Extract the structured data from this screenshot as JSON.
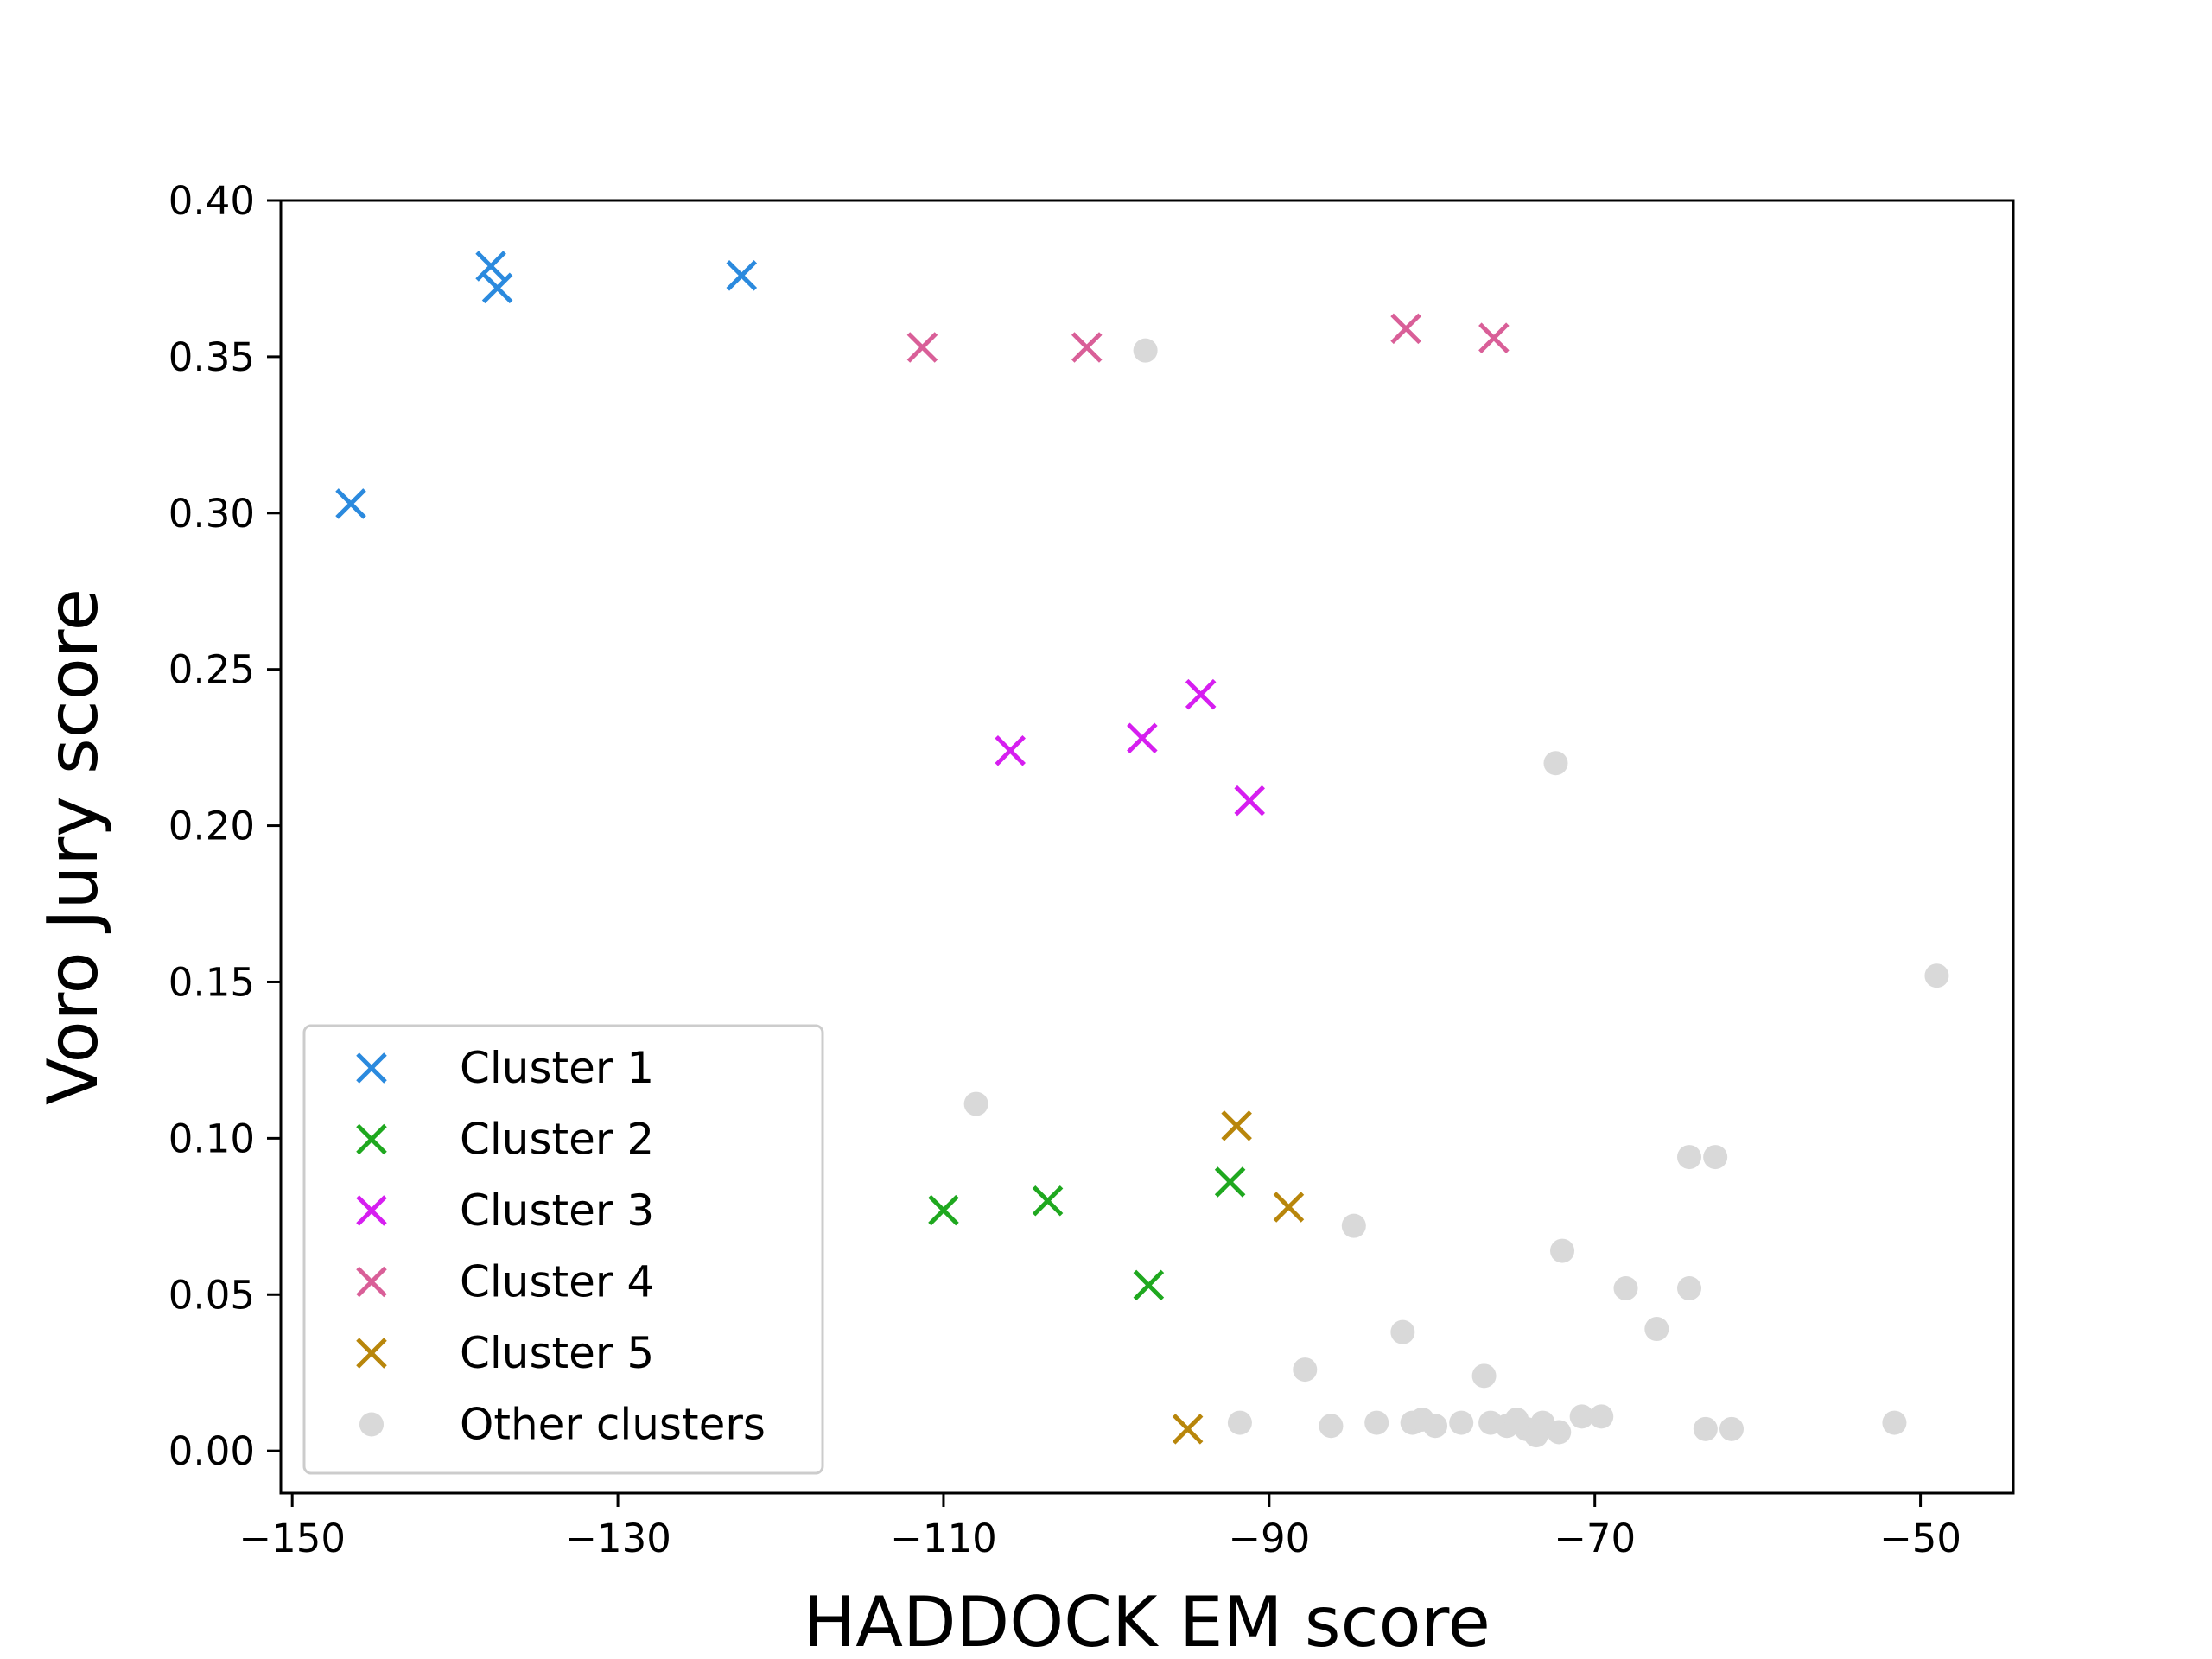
{
  "chart_data": {
    "type": "scatter",
    "title": "",
    "xlabel": "HADDOCK EM score",
    "ylabel": "Voro Jury score",
    "xlim": [
      -150.7,
      -44.3
    ],
    "ylim": [
      -0.0135,
      0.4
    ],
    "xticks": [
      -150,
      -130,
      -110,
      -90,
      -70,
      -50
    ],
    "xtick_labels": [
      "−150",
      "−130",
      "−110",
      "−90",
      "−70",
      "−50"
    ],
    "yticks": [
      0.0,
      0.05,
      0.1,
      0.15,
      0.2,
      0.25,
      0.3,
      0.35,
      0.4
    ],
    "ytick_labels": [
      "0.00",
      "0.05",
      "0.10",
      "0.15",
      "0.20",
      "0.25",
      "0.30",
      "0.35",
      "0.40"
    ],
    "grid": false,
    "legend_position": "lower-left",
    "series": [
      {
        "name": "Cluster 1",
        "marker": "x",
        "color": "#2b8ade",
        "points": [
          [
            -146.4,
            0.303
          ],
          [
            -137.8,
            0.379
          ],
          [
            -137.4,
            0.372
          ],
          [
            -122.4,
            0.376
          ]
        ]
      },
      {
        "name": "Cluster 2",
        "marker": "x",
        "color": "#1fa81f",
        "points": [
          [
            -110.0,
            0.077
          ],
          [
            -103.6,
            0.08
          ],
          [
            -97.4,
            0.053
          ],
          [
            -92.4,
            0.086
          ]
        ]
      },
      {
        "name": "Cluster 3",
        "marker": "x",
        "color": "#d61ef0",
        "points": [
          [
            -105.9,
            0.224
          ],
          [
            -97.8,
            0.228
          ],
          [
            -94.2,
            0.242
          ],
          [
            -91.2,
            0.208
          ]
        ]
      },
      {
        "name": "Cluster 4",
        "marker": "x",
        "color": "#d95f98",
        "points": [
          [
            -111.3,
            0.353
          ],
          [
            -101.2,
            0.353
          ],
          [
            -81.6,
            0.359
          ],
          [
            -76.2,
            0.356
          ]
        ]
      },
      {
        "name": "Cluster 5",
        "marker": "x",
        "color": "#b8860b",
        "points": [
          [
            -92.0,
            0.104
          ],
          [
            -88.8,
            0.078
          ],
          [
            -95.0,
            0.007
          ]
        ]
      },
      {
        "name": "Other clusters",
        "marker": "o",
        "color": "#d9d9d9",
        "points": [
          [
            -97.6,
            0.352
          ],
          [
            -72.4,
            0.22
          ],
          [
            -49.0,
            0.152
          ],
          [
            -108.0,
            0.111
          ],
          [
            -64.2,
            0.094
          ],
          [
            -62.6,
            0.094
          ],
          [
            -84.8,
            0.072
          ],
          [
            -72.0,
            0.064
          ],
          [
            -68.1,
            0.052
          ],
          [
            -64.2,
            0.052
          ],
          [
            -66.2,
            0.039
          ],
          [
            -81.8,
            0.038
          ],
          [
            -87.8,
            0.026
          ],
          [
            -76.8,
            0.024
          ],
          [
            -91.8,
            0.009
          ],
          [
            -86.2,
            0.008
          ],
          [
            -83.4,
            0.009
          ],
          [
            -81.2,
            0.009
          ],
          [
            -80.6,
            0.01
          ],
          [
            -79.8,
            0.008
          ],
          [
            -78.2,
            0.009
          ],
          [
            -76.4,
            0.009
          ],
          [
            -75.4,
            0.008
          ],
          [
            -74.8,
            0.01
          ],
          [
            -74.2,
            0.007
          ],
          [
            -73.6,
            0.005
          ],
          [
            -73.2,
            0.009
          ],
          [
            -72.2,
            0.006
          ],
          [
            -70.8,
            0.011
          ],
          [
            -69.6,
            0.011
          ],
          [
            -63.2,
            0.007
          ],
          [
            -61.6,
            0.007
          ],
          [
            -51.6,
            0.009
          ]
        ]
      }
    ]
  }
}
